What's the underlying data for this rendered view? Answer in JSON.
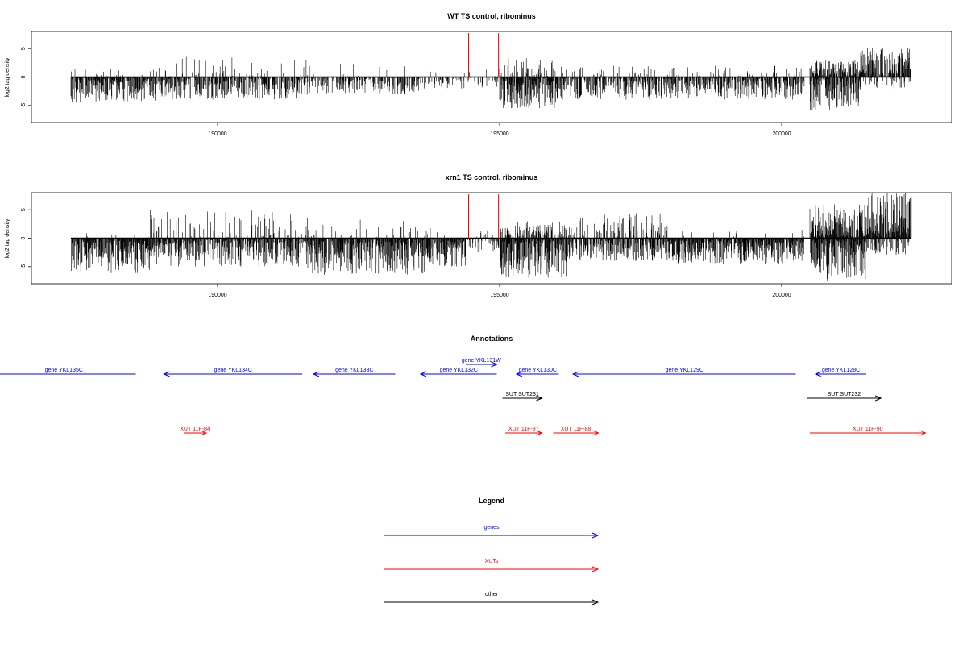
{
  "chart_data": [
    {
      "type": "bar",
      "title": "WT TS control, ribominus",
      "ylabel": "log2 tag density",
      "xlabel": "",
      "xlim": [
        187200,
        203400
      ],
      "ylim": [
        -8,
        8
      ],
      "x_ticks": [
        "190000",
        "195000",
        "200000"
      ],
      "y_ticks": [
        "-5",
        "0",
        "5"
      ],
      "line_color": "#000000",
      "grid": false,
      "note": "dense per-position tag-density bars, generated procedurally",
      "markers": {
        "color": "#ff0000",
        "x": [
          194450,
          194980
        ]
      },
      "series": [
        {
          "name": "",
          "values": [],
          "regions": [
            {
              "range": [
                187400,
                188900
              ],
              "pos": 0.1,
              "pos_max": 1.5,
              "neg": 0.9,
              "neg_max": 4.5
            },
            {
              "range": [
                188900,
                191600
              ],
              "pos": 0.15,
              "pos_max": 3.8,
              "neg": 0.75,
              "neg_max": 4
            },
            {
              "range": [
                191600,
                193600
              ],
              "pos": 0.05,
              "pos_max": 2.2,
              "neg": 0.6,
              "neg_max": 3
            },
            {
              "range": [
                193600,
                194400
              ],
              "pos": 0.05,
              "pos_max": 1,
              "neg": 0.45,
              "neg_max": 2
            },
            {
              "range": [
                194400,
                195000
              ],
              "pos": 0.05,
              "pos_max": 1.8,
              "neg": 0.35,
              "neg_max": 2
            },
            {
              "range": [
                195000,
                196000
              ],
              "pos": 0.4,
              "pos_max": 3.3,
              "neg": 0.85,
              "neg_max": 5.5
            },
            {
              "range": [
                196000,
                200400
              ],
              "pos": 0.15,
              "pos_max": 2,
              "neg": 0.75,
              "neg_max": 4
            },
            {
              "range": [
                200500,
                201400
              ],
              "pos": 0.8,
              "pos_max": 3,
              "neg": 0.9,
              "neg_max": 6
            },
            {
              "range": [
                201400,
                202300
              ],
              "pos": 0.85,
              "pos_max": 5.2,
              "neg": 0.2,
              "neg_max": 2
            }
          ]
        }
      ]
    },
    {
      "type": "bar",
      "title": "xrn1 TS control, ribominus",
      "ylabel": "log2 tag density",
      "xlabel": "",
      "xlim": [
        187200,
        203400
      ],
      "ylim": [
        -8,
        8
      ],
      "x_ticks": [
        "190000",
        "195000",
        "200000"
      ],
      "y_ticks": [
        "-5",
        "0",
        "5"
      ],
      "line_color": "#000000",
      "grid": false,
      "note": "dense per-position tag-density bars, generated procedurally",
      "markers": {
        "color": "#ff0000",
        "x": [
          194450,
          194980
        ]
      },
      "series": [
        {
          "name": "",
          "values": [],
          "regions": [
            {
              "range": [
                187400,
                188800
              ],
              "pos": 0.05,
              "pos_max": 1,
              "neg": 1,
              "neg_max": 6
            },
            {
              "range": [
                188800,
                191600
              ],
              "pos": 0.2,
              "pos_max": 5,
              "neg": 0.9,
              "neg_max": 5
            },
            {
              "range": [
                191600,
                193700
              ],
              "pos": 0.1,
              "pos_max": 3.5,
              "neg": 0.95,
              "neg_max": 6.5
            },
            {
              "range": [
                193700,
                194400
              ],
              "pos": 0.1,
              "pos_max": 2,
              "neg": 0.9,
              "neg_max": 5
            },
            {
              "range": [
                194400,
                195000
              ],
              "pos": 0.1,
              "pos_max": 1.5,
              "neg": 0.4,
              "neg_max": 3
            },
            {
              "range": [
                195000,
                196200
              ],
              "pos": 0.5,
              "pos_max": 3,
              "neg": 1,
              "neg_max": 7
            },
            {
              "range": [
                196200,
                198000
              ],
              "pos": 0.3,
              "pos_max": 4.5,
              "neg": 0.7,
              "neg_max": 4
            },
            {
              "range": [
                198000,
                200400
              ],
              "pos": 0.05,
              "pos_max": 1.5,
              "neg": 0.95,
              "neg_max": 4.5
            },
            {
              "range": [
                200500,
                201500
              ],
              "pos": 1,
              "pos_max": 6,
              "neg": 1,
              "neg_max": 7.5
            },
            {
              "range": [
                201500,
                202300
              ],
              "pos": 1,
              "pos_max": 8,
              "neg": 0.5,
              "neg_max": 3
            }
          ]
        }
      ]
    }
  ],
  "annotations": {
    "title": "Annotations",
    "colors": {
      "gene": "#0000ff",
      "xut": "#ff0000",
      "other": "#000000"
    },
    "features": [
      {
        "label": "gene YKL135C",
        "kind": "gene",
        "start": 186000,
        "end": 188550,
        "strand": "-",
        "row": 1
      },
      {
        "label": "gene YKL134C",
        "kind": "gene",
        "start": 189050,
        "end": 191500,
        "strand": "-",
        "row": 1
      },
      {
        "label": "gene YKL133C",
        "kind": "gene",
        "start": 191700,
        "end": 193150,
        "strand": "-",
        "row": 1
      },
      {
        "label": "gene YKL132C",
        "kind": "gene",
        "start": 193600,
        "end": 194950,
        "strand": "-",
        "row": 1
      },
      {
        "label": "gene YKL131W",
        "kind": "gene",
        "start": 194400,
        "end": 194950,
        "strand": "+",
        "row": 0
      },
      {
        "label": "gene YKL130C",
        "kind": "gene",
        "start": 195300,
        "end": 196050,
        "strand": "-",
        "row": 1
      },
      {
        "label": "gene YKL129C",
        "kind": "gene",
        "start": 196300,
        "end": 200250,
        "strand": "-",
        "row": 1
      },
      {
        "label": "gene YKL128C",
        "kind": "gene",
        "start": 200600,
        "end": 201500,
        "strand": "-",
        "row": 1
      },
      {
        "label": "SUT SUT231",
        "kind": "other",
        "start": 195050,
        "end": 195750,
        "strand": "+",
        "row": 2
      },
      {
        "label": "SUT SUT232",
        "kind": "other",
        "start": 200450,
        "end": 201760,
        "strand": "+",
        "row": 2
      },
      {
        "label": "XUT 11F-84",
        "kind": "xut",
        "start": 189400,
        "end": 189800,
        "strand": "+",
        "row": 3
      },
      {
        "label": "XUT 11F-87",
        "kind": "xut",
        "start": 195100,
        "end": 195750,
        "strand": "+",
        "row": 3
      },
      {
        "label": "XUT 11F-88",
        "kind": "xut",
        "start": 195950,
        "end": 196750,
        "strand": "+",
        "row": 3
      },
      {
        "label": "XUT 11F-90",
        "kind": "xut",
        "start": 200500,
        "end": 202550,
        "strand": "+",
        "row": 3
      }
    ]
  },
  "legend": {
    "title": "Legend",
    "items": [
      {
        "label": "genes",
        "color": "#0000ff"
      },
      {
        "label": "XUTs",
        "color": "#ff0000"
      },
      {
        "label": "other",
        "color": "#000000"
      }
    ]
  }
}
